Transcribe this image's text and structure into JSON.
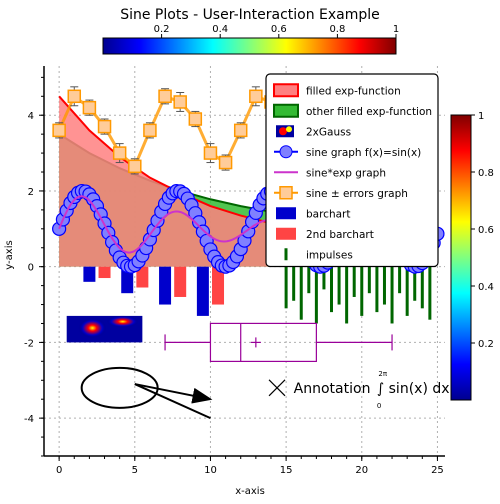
{
  "chart_data": {
    "type": "line",
    "title": "Sine Plots - User-Interaction Example",
    "xlabel": "x-axis",
    "ylabel": "y-axis",
    "xlim": [
      -1,
      25.5
    ],
    "ylim": [
      -5,
      5.3
    ],
    "grid": true,
    "x_ticks": [
      0,
      5,
      10,
      15,
      20,
      25
    ],
    "y_ticks": [
      -4,
      -2,
      0,
      2,
      4
    ],
    "top_colorbar": {
      "colormap": "jet",
      "range": [
        0,
        1
      ],
      "ticks": [
        "0.2",
        "0.4",
        "0.6",
        "0.8",
        "1"
      ]
    },
    "right_colorbar": {
      "colormap": "jet",
      "range": [
        0,
        1
      ],
      "ticks": [
        "0.2",
        "0.4",
        "0.6",
        "0.8",
        "1"
      ]
    },
    "legend": {
      "position": "top-right",
      "entries": [
        {
          "label": "filled exp-function",
          "kind": "fill",
          "color": "#ff8080",
          "edge": "#ff0000"
        },
        {
          "label": "other filled exp-function",
          "kind": "fill",
          "color": "#33bb33",
          "edge": "#006600"
        },
        {
          "label": "2xGauss",
          "kind": "image"
        },
        {
          "label": "sine graph f(x)=sin(x)",
          "kind": "line-marker",
          "color": "#0000ff",
          "marker_fill": "#8080ff"
        },
        {
          "label": "sine*exp graph",
          "kind": "line",
          "color": "#cc33cc"
        },
        {
          "label": "sine ± errors graph",
          "kind": "line-marker-square",
          "color": "#ff9900",
          "marker_fill": "#ffcc99"
        },
        {
          "label": "barchart",
          "kind": "bar",
          "color": "#0000cc"
        },
        {
          "label": "2nd barchart",
          "kind": "bar",
          "color": "#ff4444"
        },
        {
          "label": "impulses",
          "kind": "impulse",
          "color": "#006600"
        }
      ]
    },
    "series": [
      {
        "name": "filled exp-function",
        "type": "area",
        "color": "#ff8080",
        "edge": "#ff0000",
        "x": [
          0,
          2,
          4,
          6,
          8,
          10,
          12,
          14
        ],
        "y": [
          4.5,
          3.6,
          2.9,
          2.35,
          1.95,
          1.6,
          1.35,
          1.15
        ]
      },
      {
        "name": "other filled exp-function",
        "type": "area",
        "color": "#33bb33",
        "edge": "#006600",
        "x": [
          0,
          2,
          4,
          6,
          8,
          10,
          12,
          14,
          16,
          18,
          20,
          22,
          24
        ],
        "y": [
          3.5,
          3.0,
          2.6,
          2.27,
          2.0,
          1.78,
          1.6,
          1.45,
          1.32,
          1.22,
          1.13,
          1.06,
          1.0
        ]
      },
      {
        "name": "sine graph f(x)=sin(x)",
        "type": "line",
        "color": "#0000ff",
        "marker_fill": "#8080ff",
        "x_start": 0,
        "x_end": 25,
        "formula": "1 + sin(x)"
      },
      {
        "name": "sine*exp graph",
        "type": "line",
        "color": "#cc33cc",
        "formula": "1 + sin(x) * exp(-x/10)"
      },
      {
        "name": "sine ± errors graph",
        "type": "errorbar",
        "color": "#ff9900",
        "marker_fill": "#ffcc99",
        "x": [
          0,
          1,
          2,
          3,
          4,
          5,
          6,
          7,
          8,
          9,
          10,
          11,
          12,
          13,
          14,
          15,
          16
        ],
        "y": [
          3.6,
          4.5,
          4.2,
          3.7,
          3.0,
          2.65,
          3.6,
          4.5,
          4.35,
          3.9,
          3.0,
          2.75,
          3.6,
          4.5,
          4.35,
          3.8,
          3.05
        ],
        "err": [
          0.2,
          0.25,
          0.2,
          0.2,
          0.25,
          0.2,
          0.2,
          0.2,
          0.25,
          0.2,
          0.25,
          0.2,
          0.2,
          0.25,
          0.2,
          0.2,
          0.2
        ]
      },
      {
        "name": "barchart",
        "type": "bar",
        "color": "#0000cc",
        "x": [
          2,
          4.5,
          7,
          9.5
        ],
        "values": [
          -0.4,
          -0.7,
          -1.0,
          -1.3
        ]
      },
      {
        "name": "2nd barchart",
        "type": "bar",
        "color": "#ff4444",
        "x": [
          3,
          5.5,
          8,
          10.5
        ],
        "values": [
          -0.3,
          -0.55,
          -0.8,
          -1.0
        ]
      },
      {
        "name": "impulses",
        "type": "impulse",
        "color": "#006600",
        "x": [
          15,
          15.5,
          16,
          16.5,
          17,
          17.5,
          18,
          18.5,
          19,
          19.5,
          20,
          20.5,
          21,
          21.5,
          22,
          22.5,
          23,
          23.5,
          24,
          24.5
        ],
        "values": [
          -1.1,
          -0.9,
          -1.4,
          -0.7,
          -1.5,
          -0.6,
          -1.2,
          -1.0,
          -1.5,
          -0.8,
          -1.3,
          -0.7,
          -1.2,
          -1.0,
          -1.5,
          -0.7,
          -1.3,
          -0.9,
          -1.1,
          -1.4
        ]
      }
    ],
    "boxplot": {
      "min": 7,
      "q1": 10,
      "median": 12,
      "mean": 13,
      "q3": 17,
      "max": 22,
      "y": -2,
      "color": "#990099"
    },
    "annotations": {
      "text": "Annotation",
      "integral": "∫ sin(x) dx",
      "integral_lower": "0",
      "integral_upper": "2π"
    }
  }
}
